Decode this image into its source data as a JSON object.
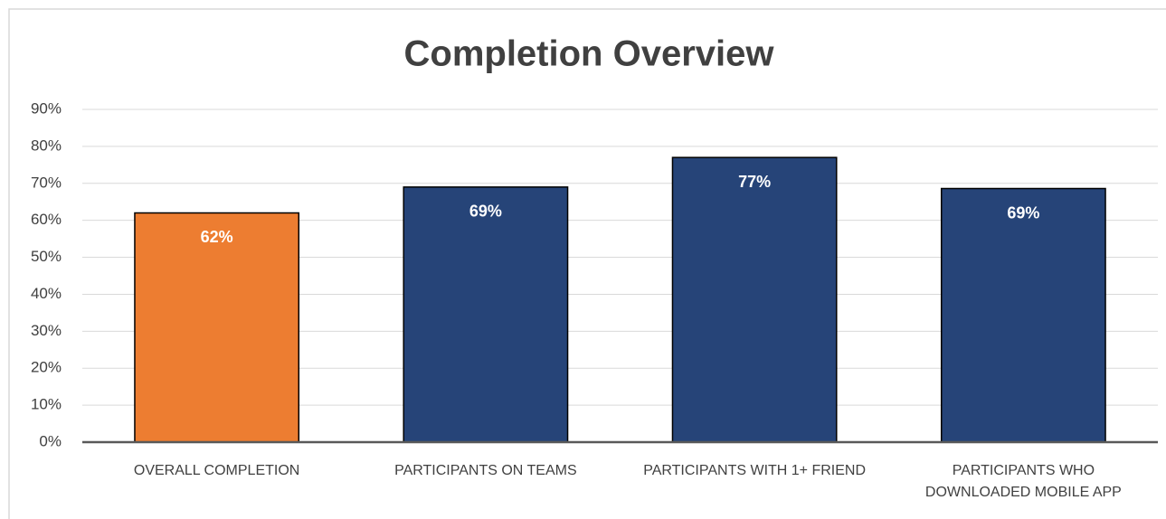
{
  "chart_data": {
    "type": "bar",
    "title": "Completion Overview",
    "categories": [
      "OVERALL COMPLETION",
      "PARTICIPANTS ON TEAMS",
      "PARTICIPANTS WITH 1+ FRIEND",
      "PARTICIPANTS WHO DOWNLOADED MOBILE APP"
    ],
    "values": [
      62,
      69,
      77,
      68.6
    ],
    "value_labels": [
      "62%",
      "69%",
      "77%",
      "69%"
    ],
    "colors": [
      "#ed7d31",
      "#264478",
      "#264478",
      "#264478"
    ],
    "ylim": [
      0,
      90
    ],
    "yticks": [
      {
        "value": 0,
        "label": "0%"
      },
      {
        "value": 10,
        "label": "10%"
      },
      {
        "value": 20,
        "label": "20%"
      },
      {
        "value": 30,
        "label": "30%"
      },
      {
        "value": 40,
        "label": "40%"
      },
      {
        "value": 50,
        "label": "50%"
      },
      {
        "value": 60,
        "label": "60%"
      },
      {
        "value": 70,
        "label": "70%"
      },
      {
        "value": 80,
        "label": "80%"
      },
      {
        "value": 90,
        "label": "90%"
      }
    ],
    "grid": true
  }
}
